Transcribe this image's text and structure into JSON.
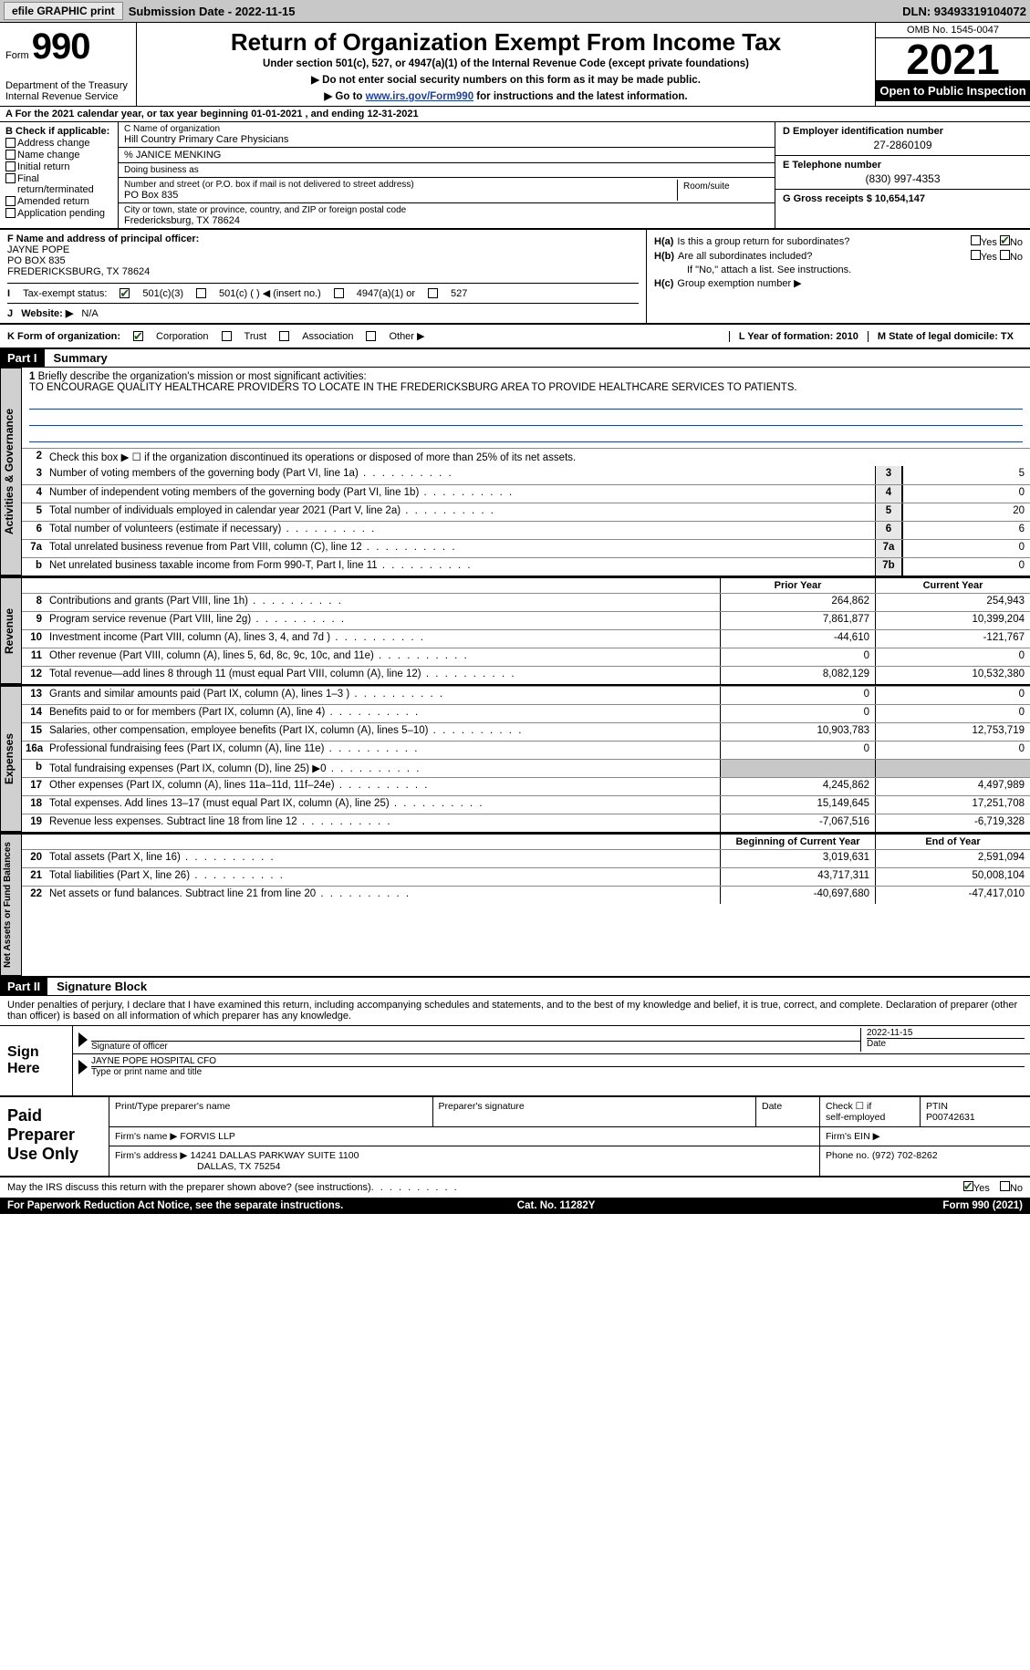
{
  "topbar": {
    "efile_label": "efile GRAPHIC print",
    "submission_label": "Submission Date - 2022-11-15",
    "dln_label": "DLN: 93493319104072"
  },
  "header": {
    "form_label": "Form",
    "form_number": "990",
    "dept": "Department of the Treasury Internal Revenue Service",
    "title": "Return of Organization Exempt From Income Tax",
    "subtitle": "Under section 501(c), 527, or 4947(a)(1) of the Internal Revenue Code (except private foundations)",
    "note1": "▶ Do not enter social security numbers on this form as it may be made public.",
    "note2_pre": "▶ Go to ",
    "note2_link": "www.irs.gov/Form990",
    "note2_post": " for instructions and the latest information.",
    "omb": "OMB No. 1545-0047",
    "year": "2021",
    "open_public": "Open to Public Inspection"
  },
  "row_a": "A For the 2021 calendar year, or tax year beginning 01-01-2021   , and ending 12-31-2021",
  "col_b": {
    "header": "B Check if applicable:",
    "items": [
      "Address change",
      "Name change",
      "Initial return",
      "Final return/terminated",
      "Amended return",
      "Application pending"
    ]
  },
  "col_c": {
    "name_label": "C Name of organization",
    "name": "Hill Country Primary Care Physicians",
    "care_of": "% JANICE MENKING",
    "dba_label": "Doing business as",
    "street_label": "Number and street (or P.O. box if mail is not delivered to street address)",
    "street": "PO Box 835",
    "room_label": "Room/suite",
    "city_label": "City or town, state or province, country, and ZIP or foreign postal code",
    "city": "Fredericksburg, TX  78624"
  },
  "col_d": {
    "ein_label": "D Employer identification number",
    "ein": "27-2860109",
    "phone_label": "E Telephone number",
    "phone": "(830) 997-4353",
    "gross_label": "G Gross receipts $ 10,654,147"
  },
  "sec_f": {
    "label": "F Name and address of principal officer:",
    "name": "JAYNE POPE",
    "street": "PO BOX 835",
    "city": "FREDERICKSBURG, TX  78624"
  },
  "sec_h": {
    "a_label": "H(a)",
    "a_text": "Is this a group return for subordinates?",
    "b_label": "H(b)",
    "b_text": "Are all subordinates included?",
    "b_note": "If \"No,\" attach a list. See instructions.",
    "c_label": "H(c)",
    "c_text": "Group exemption number ▶",
    "yes": "Yes",
    "no": "No"
  },
  "tax_status": {
    "i_label": "I",
    "label": "Tax-exempt status:",
    "opt1": "501(c)(3)",
    "opt2": "501(c) (  ) ◀ (insert no.)",
    "opt3": "4947(a)(1) or",
    "opt4": "527"
  },
  "website": {
    "j_label": "J",
    "label": "Website: ▶",
    "value": "N/A"
  },
  "k_row": {
    "label": "K Form of organization:",
    "opts": [
      "Corporation",
      "Trust",
      "Association",
      "Other ▶"
    ],
    "l_label": "L Year of formation: 2010",
    "m_label": "M State of legal domicile: TX"
  },
  "parts": {
    "p1": "Part I",
    "p1_title": "Summary",
    "p2": "Part II",
    "p2_title": "Signature Block"
  },
  "vtabs": {
    "ag": "Activities & Governance",
    "rev": "Revenue",
    "exp": "Expenses",
    "nafb": "Net Assets or Fund Balances"
  },
  "mission": {
    "label": "Briefly describe the organization's mission or most significant activities:",
    "text": "TO ENCOURAGE QUALITY HEALTHCARE PROVIDERS TO LOCATE IN THE FREDERICKSBURG AREA TO PROVIDE HEALTHCARE SERVICES TO PATIENTS."
  },
  "line2_text": "Check this box ▶ ☐ if the organization discontinued its operations or disposed of more than 25% of its net assets.",
  "ag_lines": [
    {
      "n": "3",
      "t": "Number of voting members of the governing body (Part VI, line 1a)",
      "b": "3",
      "v": "5"
    },
    {
      "n": "4",
      "t": "Number of independent voting members of the governing body (Part VI, line 1b)",
      "b": "4",
      "v": "0"
    },
    {
      "n": "5",
      "t": "Total number of individuals employed in calendar year 2021 (Part V, line 2a)",
      "b": "5",
      "v": "20"
    },
    {
      "n": "6",
      "t": "Total number of volunteers (estimate if necessary)",
      "b": "6",
      "v": "6"
    },
    {
      "n": "7a",
      "t": "Total unrelated business revenue from Part VIII, column (C), line 12",
      "b": "7a",
      "v": "0"
    },
    {
      "n": "b",
      "t": "Net unrelated business taxable income from Form 990-T, Part I, line 11",
      "b": "7b",
      "v": "0"
    }
  ],
  "col_heads": {
    "prior": "Prior Year",
    "current": "Current Year",
    "boy": "Beginning of Current Year",
    "eoy": "End of Year"
  },
  "rev_lines": [
    {
      "n": "8",
      "t": "Contributions and grants (Part VIII, line 1h)",
      "p": "264,862",
      "c": "254,943"
    },
    {
      "n": "9",
      "t": "Program service revenue (Part VIII, line 2g)",
      "p": "7,861,877",
      "c": "10,399,204"
    },
    {
      "n": "10",
      "t": "Investment income (Part VIII, column (A), lines 3, 4, and 7d )",
      "p": "-44,610",
      "c": "-121,767"
    },
    {
      "n": "11",
      "t": "Other revenue (Part VIII, column (A), lines 5, 6d, 8c, 9c, 10c, and 11e)",
      "p": "0",
      "c": "0"
    },
    {
      "n": "12",
      "t": "Total revenue—add lines 8 through 11 (must equal Part VIII, column (A), line 12)",
      "p": "8,082,129",
      "c": "10,532,380"
    }
  ],
  "exp_lines": [
    {
      "n": "13",
      "t": "Grants and similar amounts paid (Part IX, column (A), lines 1–3 )",
      "p": "0",
      "c": "0"
    },
    {
      "n": "14",
      "t": "Benefits paid to or for members (Part IX, column (A), line 4)",
      "p": "0",
      "c": "0"
    },
    {
      "n": "15",
      "t": "Salaries, other compensation, employee benefits (Part IX, column (A), lines 5–10)",
      "p": "10,903,783",
      "c": "12,753,719"
    },
    {
      "n": "16a",
      "t": "Professional fundraising fees (Part IX, column (A), line 11e)",
      "p": "0",
      "c": "0"
    },
    {
      "n": "b",
      "t": "Total fundraising expenses (Part IX, column (D), line 25) ▶0",
      "p": "",
      "c": "",
      "shade": true
    },
    {
      "n": "17",
      "t": "Other expenses (Part IX, column (A), lines 11a–11d, 11f–24e)",
      "p": "4,245,862",
      "c": "4,497,989"
    },
    {
      "n": "18",
      "t": "Total expenses. Add lines 13–17 (must equal Part IX, column (A), line 25)",
      "p": "15,149,645",
      "c": "17,251,708"
    },
    {
      "n": "19",
      "t": "Revenue less expenses. Subtract line 18 from line 12",
      "p": "-7,067,516",
      "c": "-6,719,328"
    }
  ],
  "na_lines": [
    {
      "n": "20",
      "t": "Total assets (Part X, line 16)",
      "p": "3,019,631",
      "c": "2,591,094"
    },
    {
      "n": "21",
      "t": "Total liabilities (Part X, line 26)",
      "p": "43,717,311",
      "c": "50,008,104"
    },
    {
      "n": "22",
      "t": "Net assets or fund balances. Subtract line 21 from line 20",
      "p": "-40,697,680",
      "c": "-47,417,010"
    }
  ],
  "sig": {
    "declaration": "Under penalties of perjury, I declare that I have examined this return, including accompanying schedules and statements, and to the best of my knowledge and belief, it is true, correct, and complete. Declaration of preparer (other than officer) is based on all information of which preparer has any knowledge.",
    "sign_here": "Sign Here",
    "sig_officer_label": "Signature of officer",
    "date_label": "Date",
    "sig_date": "2022-11-15",
    "officer_name": "JAYNE POPE HOSPITAL CFO",
    "type_label": "Type or print name and title"
  },
  "paid": {
    "label": "Paid Preparer Use Only",
    "h1": "Print/Type preparer's name",
    "h2": "Preparer's signature",
    "h3": "Date",
    "h4_a": "Check ☐ if",
    "h4_b": "self-employed",
    "h5": "PTIN",
    "ptin": "P00742631",
    "firm_name_label": "Firm's name   ▶",
    "firm_name": "FORVIS LLP",
    "firm_ein_label": "Firm's EIN ▶",
    "firm_addr_label": "Firm's address ▶",
    "firm_addr1": "14241 DALLAS PARKWAY SUITE 1100",
    "firm_addr2": "DALLAS, TX  75254",
    "phone_label": "Phone no.",
    "phone": "(972) 702-8262"
  },
  "footer": {
    "discuss": "May the IRS discuss this return with the preparer shown above? (see instructions)",
    "yes": "Yes",
    "no": "No",
    "paperwork": "For Paperwork Reduction Act Notice, see the separate instructions.",
    "cat": "Cat. No. 11282Y",
    "form": "Form 990 (2021)"
  },
  "colors": {
    "topbar_bg": "#c8c8c8",
    "link": "#1a3fb0",
    "shade": "#e8e8e8",
    "black": "#000000"
  }
}
